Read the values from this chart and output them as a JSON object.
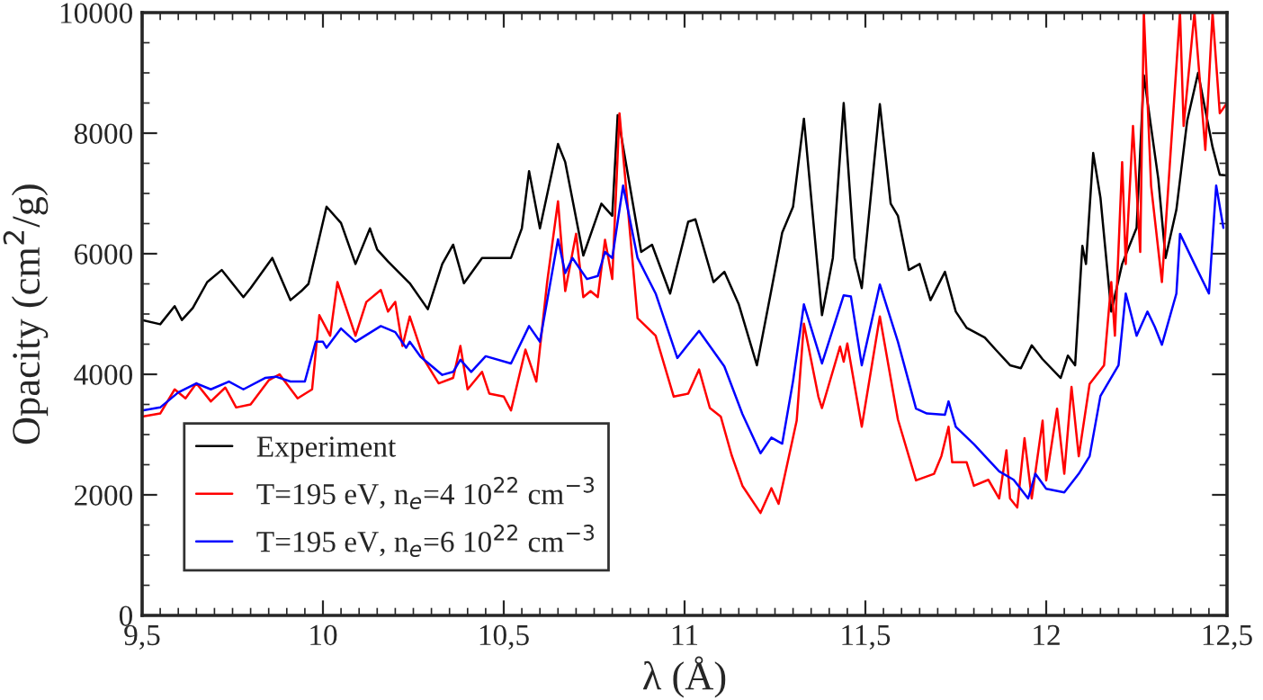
{
  "chart_data": {
    "type": "line",
    "xlabel": "λ (Å)",
    "ylabel": "Opacity (cm$^{2}$/g)",
    "xlim": [
      9.5,
      12.5
    ],
    "ylim": [
      0,
      10000
    ],
    "xticks": [
      {
        "value": 9.5,
        "label": "9,5"
      },
      10,
      {
        "value": 10.5,
        "label": "10,5"
      },
      11,
      {
        "value": 11.5,
        "label": "11,5"
      },
      12,
      {
        "value": 12.5,
        "label": "12,5"
      }
    ],
    "yticks": [
      0,
      2000,
      4000,
      6000,
      8000,
      10000
    ],
    "grid": false,
    "legend": "bottom left",
    "marker": "none",
    "line_style": "solid",
    "series": [
      {
        "name": "Experiment",
        "color": "#000000",
        "x": [
          9.5,
          9.55,
          9.59,
          9.61,
          9.64,
          9.68,
          9.72,
          9.78,
          9.8,
          9.86,
          9.91,
          9.94,
          9.96,
          10.01,
          10.05,
          10.09,
          10.13,
          10.15,
          10.18,
          10.24,
          10.29,
          10.33,
          10.36,
          10.39,
          10.44,
          10.52,
          10.55,
          10.57,
          10.6,
          10.65,
          10.67,
          10.72,
          10.77,
          10.8,
          10.815,
          10.88,
          10.91,
          10.96,
          11.01,
          11.03,
          11.08,
          11.11,
          11.15,
          11.2,
          11.24,
          11.27,
          11.3,
          11.33,
          11.38,
          11.41,
          11.44,
          11.47,
          11.49,
          11.54,
          11.57,
          11.59,
          11.62,
          11.65,
          11.68,
          11.72,
          11.75,
          11.78,
          11.83,
          11.86,
          11.9,
          11.93,
          11.96,
          11.99,
          12.04,
          12.06,
          12.08,
          12.1,
          12.11,
          12.13,
          12.15,
          12.18,
          12.21,
          12.25,
          12.27,
          12.31,
          12.33,
          12.36,
          12.39,
          12.42,
          12.46,
          12.48,
          12.5
        ],
        "values": [
          4900,
          4830,
          5130,
          4900,
          5100,
          5530,
          5730,
          5280,
          5430,
          5930,
          5230,
          5380,
          5500,
          6780,
          6510,
          5830,
          6420,
          6070,
          5870,
          5510,
          5080,
          5830,
          6150,
          5510,
          5930,
          5930,
          6420,
          7370,
          6420,
          7820,
          7520,
          5970,
          6830,
          6630,
          8300,
          6030,
          6150,
          5340,
          6530,
          6570,
          5530,
          5700,
          5160,
          4150,
          5400,
          6350,
          6780,
          8240,
          4980,
          5930,
          8500,
          5930,
          5430,
          8480,
          6830,
          6630,
          5730,
          5830,
          5230,
          5700,
          5040,
          4770,
          4610,
          4410,
          4150,
          4100,
          4480,
          4250,
          3940,
          4310,
          4150,
          6130,
          5830,
          7670,
          6930,
          5040,
          5830,
          6430,
          8960,
          7240,
          5930,
          6730,
          8210,
          9000,
          7770,
          7310,
          7300
        ]
      },
      {
        "name": "T=195 eV, n$_{e}$=4 10$^{22}$ cm$^{−3}$",
        "color": "#ff0000",
        "x": [
          9.5,
          9.55,
          9.59,
          9.62,
          9.65,
          9.69,
          9.73,
          9.76,
          9.8,
          9.85,
          9.88,
          9.93,
          9.97,
          9.99,
          10.02,
          10.04,
          10.09,
          10.12,
          10.16,
          10.18,
          10.2,
          10.22,
          10.24,
          10.28,
          10.32,
          10.36,
          10.38,
          10.4,
          10.44,
          10.46,
          10.5,
          10.52,
          10.56,
          10.59,
          10.62,
          10.65,
          10.67,
          10.7,
          10.72,
          10.74,
          10.76,
          10.78,
          10.8,
          10.82,
          10.87,
          10.92,
          10.97,
          11.01,
          11.04,
          11.07,
          11.1,
          11.13,
          11.16,
          11.21,
          11.24,
          11.26,
          11.31,
          11.33,
          11.37,
          11.38,
          11.43,
          11.44,
          11.45,
          11.49,
          11.54,
          11.59,
          11.64,
          11.69,
          11.71,
          11.73,
          11.74,
          11.78,
          11.8,
          11.84,
          11.87,
          11.89,
          11.9,
          11.92,
          11.94,
          11.96,
          11.99,
          12.0,
          12.03,
          12.05,
          12.07,
          12.09,
          12.12,
          12.16,
          12.18,
          12.19,
          12.21,
          12.22,
          12.24,
          12.26,
          12.27,
          12.29,
          12.32,
          12.34,
          12.37,
          12.38,
          12.41,
          12.44,
          12.46,
          12.48,
          12.5
        ],
        "values": [
          3300,
          3350,
          3750,
          3600,
          3850,
          3550,
          3780,
          3450,
          3500,
          3900,
          4000,
          3600,
          3750,
          4980,
          4640,
          5530,
          4640,
          5200,
          5400,
          5040,
          5200,
          4470,
          4960,
          4240,
          3850,
          3940,
          4470,
          3750,
          4040,
          3680,
          3630,
          3400,
          4410,
          3880,
          5530,
          6870,
          5380,
          6330,
          5280,
          5380,
          5280,
          6230,
          5580,
          8330,
          4930,
          4640,
          3630,
          3680,
          4080,
          3440,
          3300,
          2660,
          2150,
          1700,
          2110,
          1850,
          3230,
          4840,
          3630,
          3440,
          4460,
          4210,
          4510,
          3130,
          4960,
          3250,
          2240,
          2350,
          2640,
          3130,
          2540,
          2540,
          2150,
          2250,
          1940,
          2740,
          1940,
          1790,
          2940,
          1940,
          3230,
          2240,
          3430,
          2350,
          3790,
          2640,
          3840,
          4150,
          5530,
          4640,
          7520,
          5830,
          8120,
          6030,
          10000,
          7130,
          5530,
          7320,
          10000,
          8120,
          10000,
          7720,
          10000,
          8330,
          8500
        ]
      },
      {
        "name": "T=195 eV, n$_{e}$=6 10$^{22}$ cm$^{−3}$",
        "color": "#0000ff",
        "x": [
          9.5,
          9.55,
          9.6,
          9.65,
          9.69,
          9.74,
          9.78,
          9.84,
          9.87,
          9.91,
          9.95,
          9.98,
          10.0,
          10.01,
          10.05,
          10.09,
          10.16,
          10.2,
          10.23,
          10.24,
          10.27,
          10.33,
          10.36,
          10.38,
          10.41,
          10.45,
          10.52,
          10.57,
          10.6,
          10.65,
          10.67,
          10.69,
          10.73,
          10.76,
          10.78,
          10.8,
          10.83,
          10.87,
          10.92,
          10.98,
          11.04,
          11.11,
          11.16,
          11.21,
          11.24,
          11.27,
          11.3,
          11.33,
          11.38,
          11.44,
          11.46,
          11.49,
          11.54,
          11.59,
          11.64,
          11.67,
          11.72,
          11.73,
          11.75,
          11.8,
          11.87,
          11.91,
          11.95,
          11.97,
          12.0,
          12.05,
          12.09,
          12.12,
          12.15,
          12.2,
          12.22,
          12.25,
          12.28,
          12.3,
          12.32,
          12.36,
          12.37,
          12.41,
          12.45,
          12.47,
          12.49
        ],
        "values": [
          3400,
          3450,
          3700,
          3850,
          3750,
          3880,
          3750,
          3940,
          3960,
          3880,
          3880,
          4540,
          4540,
          4440,
          4760,
          4540,
          4800,
          4700,
          4440,
          4540,
          4290,
          3990,
          4040,
          4240,
          4040,
          4300,
          4180,
          4800,
          4540,
          6240,
          5680,
          5930,
          5580,
          5630,
          6030,
          5930,
          7130,
          5930,
          5340,
          4270,
          4720,
          4130,
          3340,
          2690,
          2950,
          2850,
          3890,
          5160,
          4180,
          5310,
          5290,
          4150,
          5490,
          4540,
          3430,
          3350,
          3330,
          3550,
          3130,
          2840,
          2390,
          2250,
          1940,
          2350,
          2100,
          2040,
          2350,
          2640,
          3640,
          4150,
          5340,
          4640,
          5040,
          4790,
          4490,
          5340,
          6330,
          5830,
          5340,
          7130,
          6430
        ]
      }
    ]
  }
}
